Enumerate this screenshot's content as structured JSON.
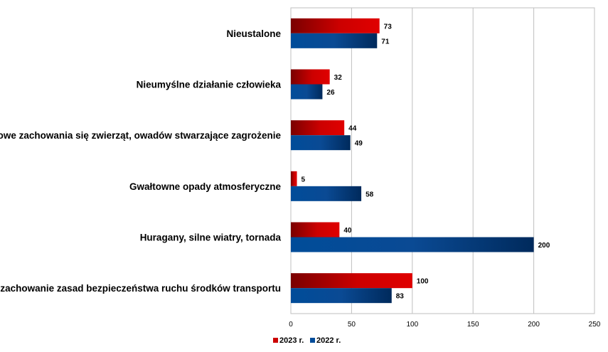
{
  "chart_data": {
    "type": "bar",
    "orientation": "horizontal",
    "categories": [
      "Nieustalone",
      "Nieumyślne działanie człowieka",
      "Nietypowe zachowania się zwierząt, owadów stwarzające zagrożenie",
      "Gwałtowne opady atmosferyczne",
      "Huragany, silne wiatry, tornada",
      "Niezachowanie zasad bezpieczeństwa ruchu środków transportu"
    ],
    "series": [
      {
        "name": "2023 r.",
        "values": [
          73,
          32,
          44,
          5,
          40,
          100
        ],
        "color": "#cc0000"
      },
      {
        "name": "2022 r.",
        "values": [
          71,
          26,
          49,
          58,
          200,
          83
        ],
        "color": "#004c99"
      }
    ],
    "xlim": [
      0,
      250
    ],
    "xticks": [
      "0",
      "50",
      "100",
      "150",
      "200",
      "250"
    ],
    "grid": true,
    "legend_position": "bottom",
    "data_labels": true
  }
}
